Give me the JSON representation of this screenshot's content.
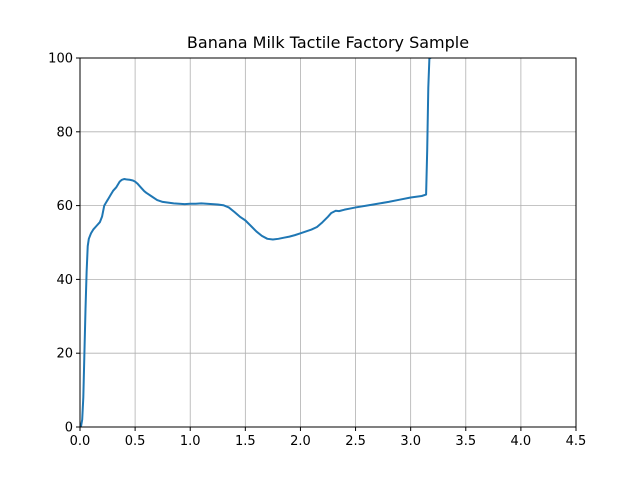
{
  "chart_data": {
    "type": "line",
    "title": "Banana Milk Tactile Factory Sample",
    "xlabel": "",
    "ylabel": "",
    "xlim": [
      0,
      4.5
    ],
    "ylim": [
      0,
      100
    ],
    "x_ticks": [
      0,
      0.5,
      1,
      1.5,
      2,
      2.5,
      3,
      3.5,
      4,
      4.5
    ],
    "x_tick_labels": [
      "0.0",
      "0.5",
      "1.0",
      "1.5",
      "2.0",
      "2.5",
      "3.0",
      "3.5",
      "4.0",
      "4.5"
    ],
    "y_ticks": [
      0,
      20,
      40,
      60,
      80,
      100
    ],
    "y_tick_labels": [
      "0",
      "20",
      "40",
      "60",
      "80",
      "100"
    ],
    "grid": true,
    "line_color": "#1f77b4",
    "series": [
      {
        "x": [
          0.0,
          0.01,
          0.02,
          0.03,
          0.04,
          0.05,
          0.06,
          0.07,
          0.08,
          0.1,
          0.12,
          0.15,
          0.18,
          0.2,
          0.22,
          0.24,
          0.25,
          0.26,
          0.28,
          0.3,
          0.33,
          0.36,
          0.38,
          0.4,
          0.42,
          0.45,
          0.48,
          0.5,
          0.52,
          0.55,
          0.58,
          0.6,
          0.65,
          0.7,
          0.75,
          0.8,
          0.85,
          0.9,
          0.95,
          1.0,
          1.05,
          1.1,
          1.15,
          1.2,
          1.25,
          1.3,
          1.35,
          1.4,
          1.45,
          1.5,
          1.55,
          1.6,
          1.65,
          1.7,
          1.75,
          1.8,
          1.85,
          1.9,
          1.95,
          2.0,
          2.05,
          2.1,
          2.15,
          2.2,
          2.25,
          2.28,
          2.32,
          2.35,
          2.4,
          2.45,
          2.5,
          2.6,
          2.7,
          2.8,
          2.9,
          3.0,
          3.1,
          3.14,
          3.15,
          3.16,
          3.17,
          3.18
        ],
        "y": [
          0,
          0.3,
          2,
          8,
          20,
          32,
          42,
          49,
          51,
          52.5,
          53.5,
          54.5,
          55.5,
          57,
          60,
          61,
          61.5,
          62,
          63,
          64,
          65,
          66.5,
          67,
          67.2,
          67.1,
          67.0,
          66.8,
          66.5,
          66,
          65,
          64,
          63.5,
          62.5,
          61.5,
          61,
          60.8,
          60.6,
          60.5,
          60.4,
          60.5,
          60.5,
          60.6,
          60.5,
          60.4,
          60.3,
          60.1,
          59.5,
          58.3,
          57,
          56,
          54.5,
          53,
          51.8,
          51,
          50.8,
          51,
          51.3,
          51.6,
          52,
          52.5,
          53,
          53.5,
          54.2,
          55.5,
          57,
          58,
          58.6,
          58.5,
          58.9,
          59.2,
          59.5,
          60,
          60.5,
          61,
          61.6,
          62.2,
          62.6,
          63,
          75,
          92,
          100,
          100
        ]
      }
    ]
  }
}
